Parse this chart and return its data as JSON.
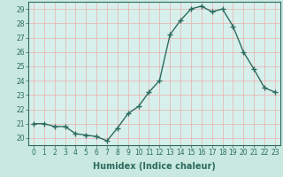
{
  "x": [
    0,
    1,
    2,
    3,
    4,
    5,
    6,
    7,
    8,
    9,
    10,
    11,
    12,
    13,
    14,
    15,
    16,
    17,
    18,
    19,
    20,
    21,
    22,
    23
  ],
  "y": [
    21.0,
    21.0,
    20.8,
    20.8,
    20.3,
    20.2,
    20.1,
    19.8,
    20.7,
    21.7,
    22.2,
    23.2,
    24.0,
    27.2,
    28.2,
    29.0,
    29.2,
    28.8,
    29.0,
    27.8,
    26.0,
    24.8,
    23.5,
    23.2
  ],
  "line_color": "#2d6b5e",
  "marker": "+",
  "marker_size": 4,
  "linewidth": 1.0,
  "xlabel": "Humidex (Indice chaleur)",
  "ylabel": "",
  "xlim": [
    -0.5,
    23.5
  ],
  "ylim": [
    19.5,
    29.5
  ],
  "yticks": [
    20,
    21,
    22,
    23,
    24,
    25,
    26,
    27,
    28,
    29
  ],
  "xticks": [
    0,
    1,
    2,
    3,
    4,
    5,
    6,
    7,
    8,
    9,
    10,
    11,
    12,
    13,
    14,
    15,
    16,
    17,
    18,
    19,
    20,
    21,
    22,
    23
  ],
  "background_color": "#c8e8e0",
  "plot_bg_color": "#d8f0ec",
  "grid_color": "#e8b8b8",
  "tick_color": "#2d6b5e",
  "label_color": "#2d6b5e",
  "xlabel_fontsize": 7,
  "tick_fontsize": 5.5
}
